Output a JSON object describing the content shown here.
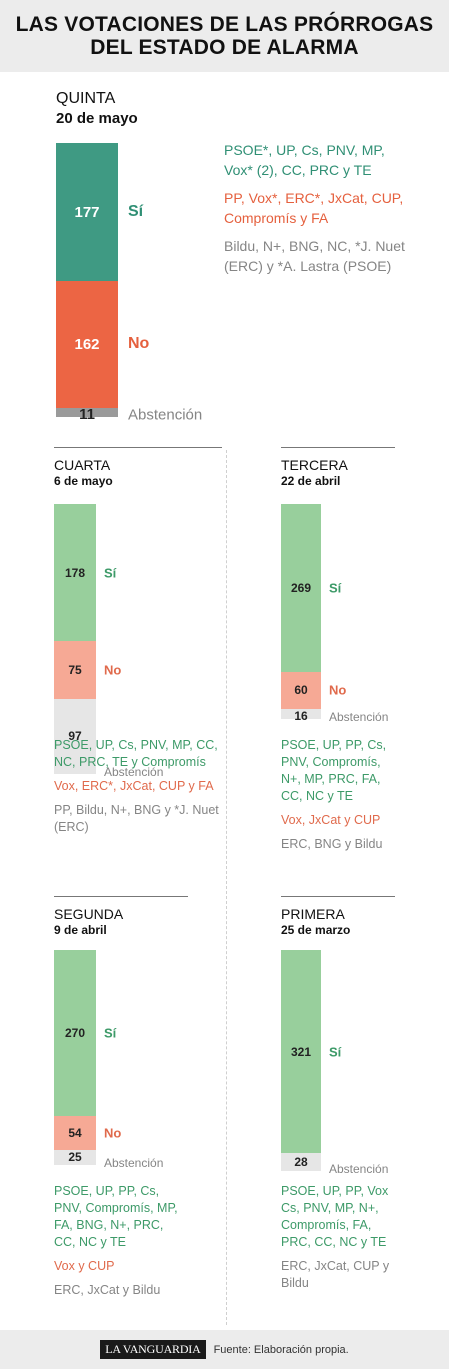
{
  "header": {
    "title_line1": "LAS VOTACIONES DE LAS PRÓRROGAS",
    "title_line2": "DEL ESTADO DE ALARMA"
  },
  "colors": {
    "main_si": "#3f9a83",
    "main_no": "#ec6544",
    "main_abs": "#9a9a9a",
    "si": "#98cf9c",
    "no": "#f6a995",
    "abs": "#e6e6e6",
    "si_text": "#3d9a68",
    "no_text": "#e06a4c",
    "abs_text": "#858585",
    "main_si_text": "#2f8f74",
    "main_no_text": "#e5603e"
  },
  "labels": {
    "si": "Sí",
    "no": "No",
    "abs": "Abstención"
  },
  "footer": {
    "logo": "LA VANGUARDIA",
    "source": "Fuente: Elaboración propia."
  },
  "chart_data": [
    {
      "type": "bar",
      "stacked": true,
      "title": "QUINTA",
      "date": "20 de mayo",
      "categories": [
        "Sí",
        "No",
        "Abstención"
      ],
      "values": [
        177,
        162,
        11
      ],
      "parties": {
        "si": "PSOE*, UP, Cs, PNV, MP, Vox* (2), CC, PRC y TE",
        "no": "PP, Vox*, ERC*, JxCat, CUP, Compromís y FA",
        "abs": "Bildu, N+, BNG, NC, *J. Nuet (ERC) y *A. Lastra (PSOE)"
      }
    },
    {
      "type": "bar",
      "stacked": true,
      "title": "CUARTA",
      "date": "6 de mayo",
      "categories": [
        "Sí",
        "No",
        "Abstención"
      ],
      "values": [
        178,
        75,
        97
      ],
      "parties": {
        "si": "PSOE, UP, Cs, PNV, MP, CC, NC, PRC, TE y Compromís",
        "no": "Vox, ERC*, JxCat, CUP y FA",
        "abs": "PP, Bildu, N+, BNG y *J. Nuet (ERC)"
      }
    },
    {
      "type": "bar",
      "stacked": true,
      "title": "TERCERA",
      "date": "22 de abril",
      "categories": [
        "Sí",
        "No",
        "Abstención"
      ],
      "values": [
        269,
        60,
        16
      ],
      "parties": {
        "si": "PSOE, UP, PP, Cs, PNV, Compromís, N+, MP, PRC, FA, CC, NC y TE",
        "no": "Vox, JxCat y CUP",
        "abs": "ERC, BNG y Bildu"
      }
    },
    {
      "type": "bar",
      "stacked": true,
      "title": "SEGUNDA",
      "date": "9 de abril",
      "categories": [
        "Sí",
        "No",
        "Abstención"
      ],
      "values": [
        270,
        54,
        25
      ],
      "parties": {
        "si": "PSOE, UP, PP, Cs, PNV, Compromís, MP, FA, BNG, N+, PRC, CC, NC y TE",
        "no": "Vox y CUP",
        "abs": "ERC, JxCat y Bildu"
      }
    },
    {
      "type": "bar",
      "stacked": true,
      "title": "PRIMERA",
      "date": "25 de marzo",
      "categories": [
        "Sí",
        "Abstención"
      ],
      "values": [
        321,
        28
      ],
      "parties": {
        "si": "PSOE, UP, PP, Vox Cs, PNV, MP, N+, Compromís, FA, PRC, CC, NC y TE",
        "no": "",
        "abs": "ERC, JxCat, CUP y Bildu"
      }
    }
  ]
}
